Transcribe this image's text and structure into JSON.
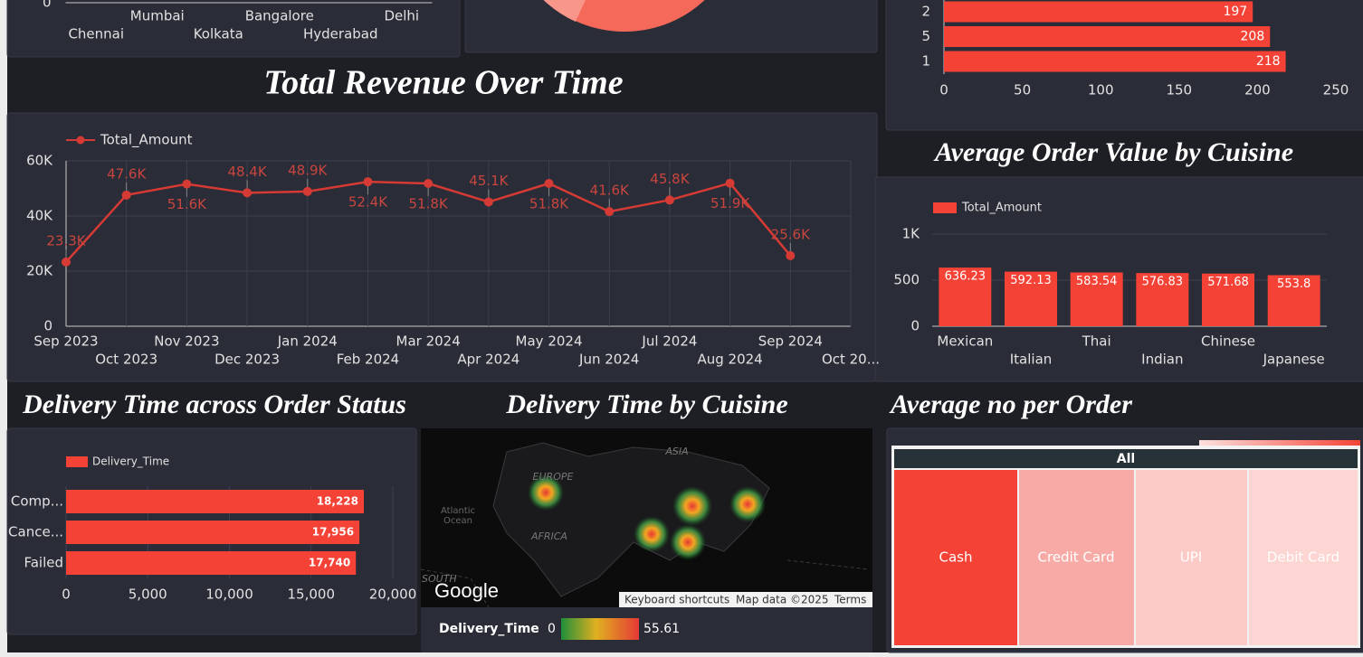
{
  "chart_data": [
    {
      "type": "bar",
      "categories": [
        "Chennai",
        "Mumbai",
        "Kolkata",
        "Bangalore",
        "Hyderabad",
        "Delhi"
      ],
      "yticks": [
        0
      ]
    },
    {
      "type": "hbar",
      "categories": [
        "2",
        "5",
        "1"
      ],
      "values": [
        197,
        208,
        218
      ],
      "color": "#f44336",
      "xlim": [
        0,
        250
      ],
      "xticks": [
        0,
        50,
        100,
        150,
        200,
        250
      ]
    },
    {
      "type": "line",
      "title": "Total Revenue Over Time",
      "x": [
        "Sep 2023",
        "Oct 2023",
        "Nov 2023",
        "Dec 2023",
        "Jan 2024",
        "Feb 2024",
        "Mar 2024",
        "Apr 2024",
        "May 2024",
        "Jun 2024",
        "Jul 2024",
        "Aug 2024",
        "Sep 2024"
      ],
      "xticks": [
        "Sep 2023",
        "Oct 2023",
        "Nov 2023",
        "Dec 2023",
        "Jan 2024",
        "Feb 2024",
        "Mar 2024",
        "Apr 2024",
        "May 2024",
        "Jun 2024",
        "Jul 2024",
        "Aug 2024",
        "Sep 2024",
        "Oct 20..."
      ],
      "series": [
        {
          "name": "Total_Amount",
          "color": "#d63a34",
          "values": [
            23300,
            47600,
            51600,
            48400,
            48900,
            52400,
            51800,
            45100,
            51800,
            41600,
            45800,
            51900,
            25600
          ],
          "value_labels": [
            "23.3K",
            "47.6K",
            "51.6K",
            "48.4K",
            "48.9K",
            "52.4K",
            "51.8K",
            "45.1K",
            "51.8K",
            "41.6K",
            "45.8K",
            "51.9K",
            "25.6K"
          ]
        }
      ],
      "ylim": [
        0,
        60000
      ],
      "yticks": [
        0,
        {
          "value": 20000,
          "label": "20K"
        },
        {
          "value": 40000,
          "label": "40K"
        },
        {
          "value": 60000,
          "label": "60K"
        }
      ],
      "grid": true
    },
    {
      "type": "bar",
      "title": "Average Order Value by Cuisine",
      "categories": [
        "Mexican",
        "Italian",
        "Thai",
        "Indian",
        "Chinese",
        "Japanese"
      ],
      "series": [
        {
          "name": "Total_Amount",
          "color": "#f44336",
          "values": [
            636.23,
            592.13,
            583.54,
            576.83,
            571.68,
            553.8
          ]
        }
      ],
      "ylim": [
        0,
        1000
      ],
      "yticks": [
        0,
        500,
        {
          "value": 1000,
          "label": "1K"
        }
      ],
      "grid": true
    },
    {
      "type": "hbar",
      "title": "Delivery Time across Order Status",
      "categories": [
        "Comp...",
        "Cance...",
        "Failed"
      ],
      "series": [
        {
          "name": "Delivery_Time",
          "color": "#f44336",
          "values": [
            18228,
            17956,
            17740
          ],
          "value_labels": [
            "18,228",
            "17,956",
            "17,740"
          ]
        }
      ],
      "xlim": [
        0,
        20000
      ],
      "xticks": [
        0,
        {
          "value": 5000,
          "label": "5,000"
        },
        {
          "value": 10000,
          "label": "10,000"
        },
        {
          "value": 15000,
          "label": "15,000"
        },
        {
          "value": 20000,
          "label": "20,000"
        }
      ],
      "grid": true
    }
  ],
  "map": {
    "title": "Delivery Time by Cuisine",
    "labels": {
      "asia": "ASIA",
      "europe": "EUROPE",
      "atlantic": "Atlantic",
      "ocean": "Ocean",
      "africa": "AFRICA",
      "south": "SOUTH"
    },
    "brand": "Google",
    "shortcuts": "Keyboard shortcuts",
    "map_data": "Map data ©2025",
    "terms": "Terms",
    "legend": {
      "title": "Delivery_Time",
      "min": 0,
      "max": 55.61
    }
  },
  "treemap": {
    "title": "Average no per Order",
    "root": "All",
    "cells": [
      "Cash",
      "Credit Card",
      "UPI",
      "Debit Card"
    ]
  }
}
